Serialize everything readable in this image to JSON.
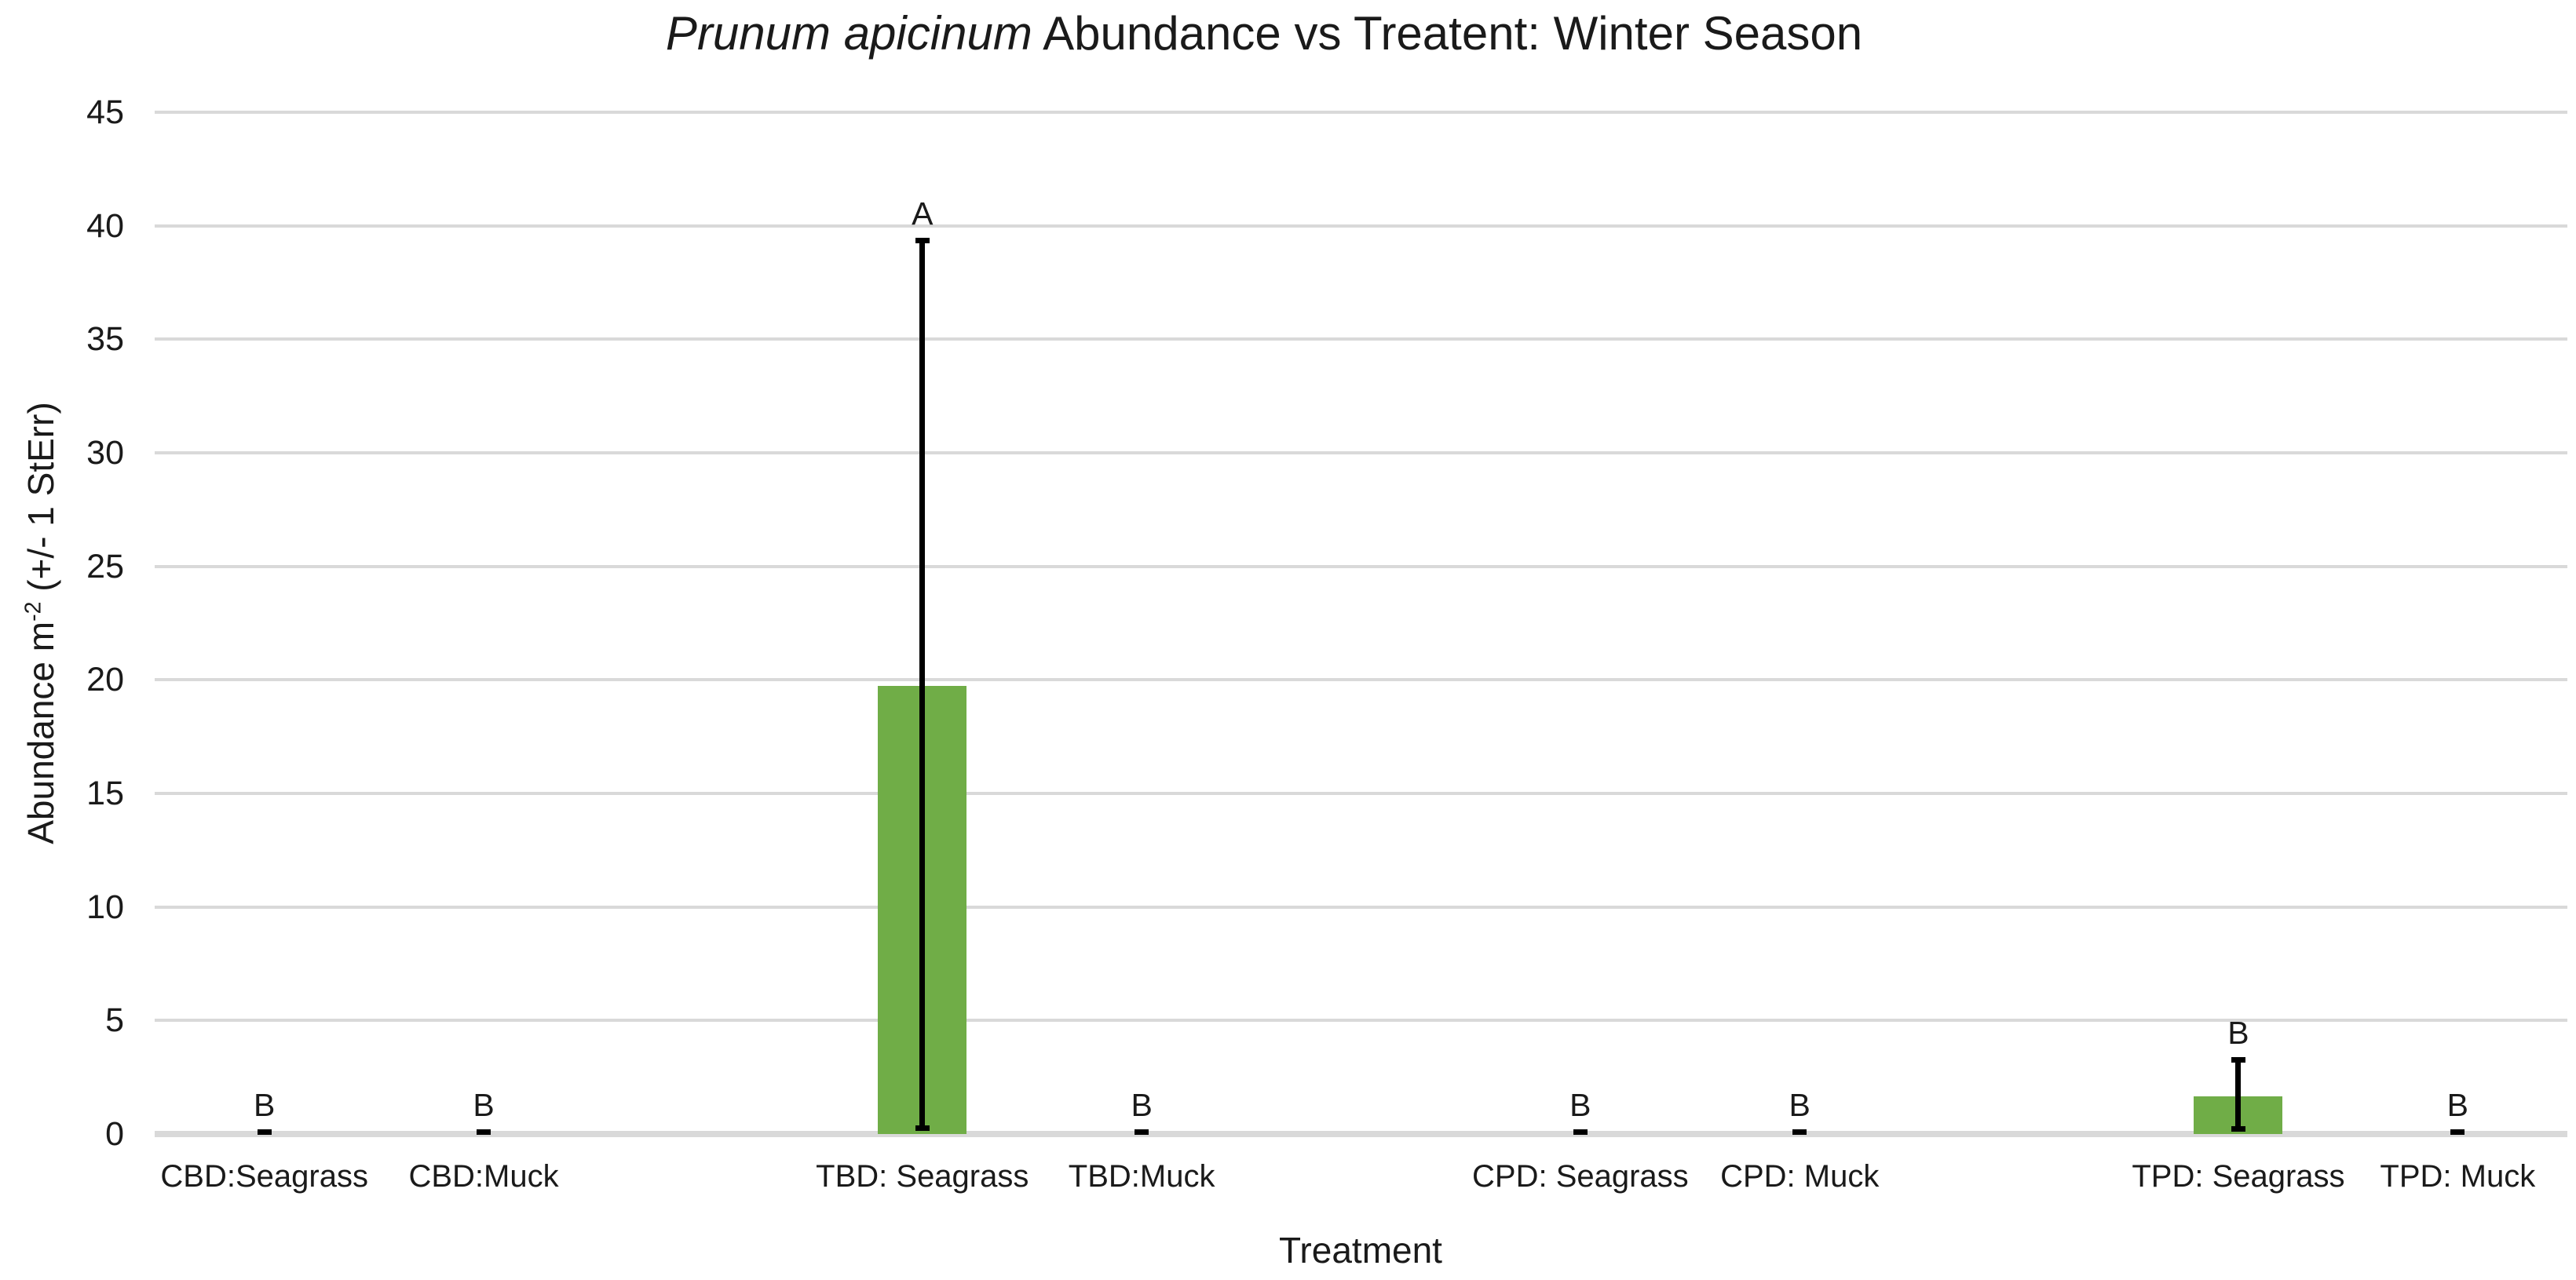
{
  "title": {
    "italic_part": "Prunum apicinum",
    "rest": " Abundance vs Treatent: Winter Season"
  },
  "y_axis": {
    "label_prefix": "Abundance m",
    "label_superscript": "-2",
    "label_suffix": " (+/- 1 StErr)"
  },
  "x_axis": {
    "title": "Treatment"
  },
  "chart_data": {
    "type": "bar",
    "title": "Prunum apicinum Abundance vs Treatent: Winter Season",
    "xlabel": "Treatment",
    "ylabel": "Abundance m-2 (+/- 1 StErr)",
    "ylim": [
      0,
      45
    ],
    "yticks": [
      0,
      5,
      10,
      15,
      20,
      25,
      30,
      35,
      40,
      45
    ],
    "grid": "horizontal",
    "legend": "none",
    "categories": [
      "CBD:Seagrass",
      "CBD:Muck",
      "TBD: Seagrass",
      "TBD:Muck",
      "CPD: Seagrass",
      "CPD: Muck",
      "TPD: Seagrass",
      "TPD: Muck"
    ],
    "values": [
      0,
      0,
      19.75,
      0,
      0,
      0,
      1.65,
      0
    ],
    "stderr_plus": [
      0.1,
      0.1,
      19.6,
      0.1,
      0.1,
      0.1,
      1.6,
      0.1
    ],
    "error_bar_tops": [
      0.1,
      0.1,
      39.35,
      0.1,
      0.1,
      0.1,
      3.25,
      0.1
    ],
    "sig_letters": [
      "B",
      "B",
      "A",
      "B",
      "B",
      "B",
      "B",
      "B"
    ],
    "slot_indices": [
      0,
      1,
      3,
      4,
      6,
      7,
      9,
      10
    ],
    "total_slots": 11,
    "bar_color": "#70AD47",
    "error_bar_color": "#000000",
    "gridline_color": "#D9D9D9",
    "axis_line_color": "#D9D9D9"
  }
}
